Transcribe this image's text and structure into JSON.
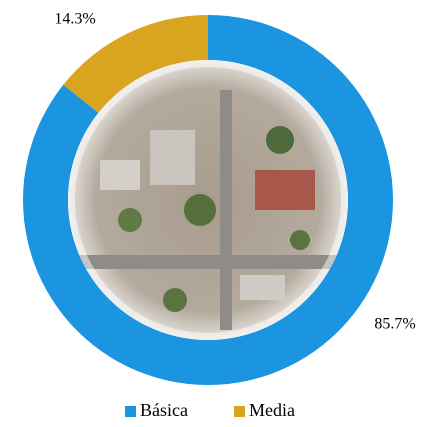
{
  "chart_data": {
    "type": "donut",
    "categories": [
      "Básica",
      "Media"
    ],
    "values": [
      85.7,
      14.3
    ],
    "value_labels": [
      "85.7%",
      "14.3%"
    ],
    "colors": [
      "#1b95e0",
      "#d9a521"
    ],
    "legend": "bottom"
  }
}
